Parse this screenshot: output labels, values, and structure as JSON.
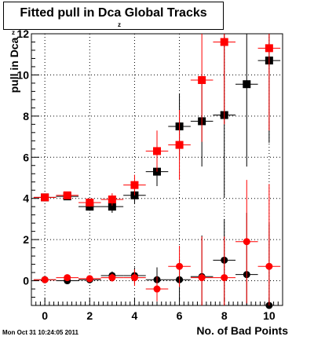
{
  "chart_data": {
    "type": "scatter",
    "title": "Fitted pull in Dca Global Tracks",
    "title_subscript": "z",
    "xlabel": "No. of Bad Points",
    "ylabel": "pull in Dca",
    "ylabel_subscript": "z",
    "xlim": [
      -0.6,
      10.6
    ],
    "ylim": [
      -1.2,
      12.0
    ],
    "x_ticks": [
      0,
      2,
      4,
      6,
      8,
      10
    ],
    "y_ticks": [
      0,
      2,
      4,
      6,
      8,
      10,
      12
    ],
    "grid": true,
    "legend": "none",
    "series": [
      {
        "marker": "square",
        "color": "#000000",
        "points": [
          {
            "x": 0,
            "y": 4.05,
            "err": 0.15
          },
          {
            "x": 1,
            "y": 4.1,
            "err": 0.15
          },
          {
            "x": 2,
            "y": 3.6,
            "err": 0.2
          },
          {
            "x": 3,
            "y": 3.6,
            "err": 0.3
          },
          {
            "x": 4,
            "y": 4.15,
            "err": 0.4
          },
          {
            "x": 5,
            "y": 5.3,
            "err": 0.7
          },
          {
            "x": 6,
            "y": 7.5,
            "err": 1.6
          },
          {
            "x": 7,
            "y": 7.75,
            "err": 2.2
          },
          {
            "x": 8,
            "y": 8.05,
            "err": 4.0
          },
          {
            "x": 9,
            "y": 9.55,
            "err": 4.0
          },
          {
            "x": 10,
            "y": 10.7,
            "err": 4.0
          }
        ]
      },
      {
        "marker": "square",
        "color": "#ff0000",
        "points": [
          {
            "x": 0,
            "y": 4.05,
            "err": 0.15
          },
          {
            "x": 1,
            "y": 4.15,
            "err": 0.15
          },
          {
            "x": 2,
            "y": 3.8,
            "err": 0.2
          },
          {
            "x": 3,
            "y": 3.95,
            "err": 0.3
          },
          {
            "x": 4,
            "y": 4.65,
            "err": 0.5
          },
          {
            "x": 5,
            "y": 6.3,
            "err": 1.0
          },
          {
            "x": 6,
            "y": 6.6,
            "err": 1.7
          },
          {
            "x": 7,
            "y": 9.75,
            "err": 3.0
          },
          {
            "x": 8,
            "y": 11.6,
            "err": 4.0
          },
          {
            "x": 10,
            "y": 11.3,
            "err": 4.0
          }
        ]
      },
      {
        "marker": "circle",
        "color": "#000000",
        "points": [
          {
            "x": 0,
            "y": 0.05,
            "err": 0.05
          },
          {
            "x": 1,
            "y": 0.0,
            "err": 0.05
          },
          {
            "x": 2,
            "y": 0.05,
            "err": 0.1
          },
          {
            "x": 3,
            "y": 0.25,
            "err": 0.2
          },
          {
            "x": 4,
            "y": 0.25,
            "err": 0.4
          },
          {
            "x": 5,
            "y": 0.05,
            "err": 0.6
          },
          {
            "x": 6,
            "y": 0.05,
            "err": 1.0
          },
          {
            "x": 7,
            "y": 0.2,
            "err": 2.0
          },
          {
            "x": 8,
            "y": 1.0,
            "err": 2.0
          },
          {
            "x": 9,
            "y": 0.3,
            "err": 3.0
          },
          {
            "x": 10,
            "y": -1.2,
            "err": 4.0
          }
        ]
      },
      {
        "marker": "circle",
        "color": "#ff0000",
        "points": [
          {
            "x": 0,
            "y": 0.05,
            "err": 0.05
          },
          {
            "x": 1,
            "y": 0.15,
            "err": 0.05
          },
          {
            "x": 2,
            "y": 0.1,
            "err": 0.1
          },
          {
            "x": 3,
            "y": 0.15,
            "err": 0.2
          },
          {
            "x": 4,
            "y": 0.15,
            "err": 0.4
          },
          {
            "x": 5,
            "y": -0.4,
            "err": 0.6
          },
          {
            "x": 6,
            "y": 0.7,
            "err": 1.0
          },
          {
            "x": 7,
            "y": 0.15,
            "err": 2.0
          },
          {
            "x": 8,
            "y": 0.15,
            "err": 2.0
          },
          {
            "x": 9,
            "y": 1.9,
            "err": 3.0
          },
          {
            "x": 10,
            "y": 0.7,
            "err": 4.0
          }
        ]
      }
    ]
  },
  "footer": {
    "timestamp": "Mon Oct 31 10:24:05 2011"
  }
}
